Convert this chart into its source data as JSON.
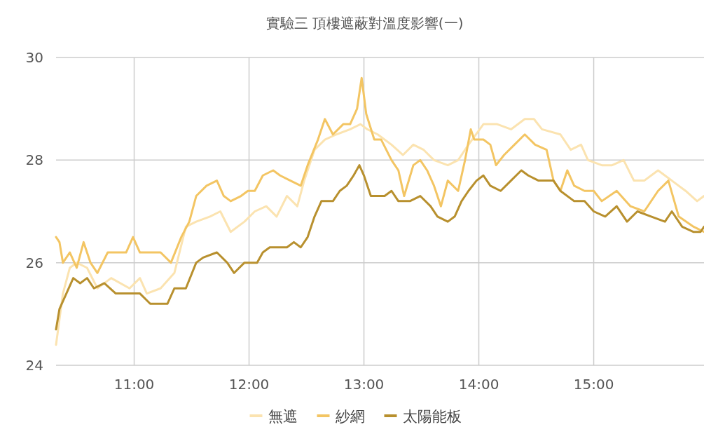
{
  "chart_data": {
    "type": "line",
    "title": "實驗三 頂樓遮蔽對溫度影響(一)",
    "xlim": [
      10.32,
      15.96
    ],
    "xticks": [
      {
        "value": 11,
        "label": "11:00"
      },
      {
        "value": 12,
        "label": "12:00"
      },
      {
        "value": 13,
        "label": "13:00"
      },
      {
        "value": 14,
        "label": "14:00"
      },
      {
        "value": 15,
        "label": "15:00"
      }
    ],
    "ylim": [
      24,
      30
    ],
    "yticks": [
      24,
      26,
      28,
      30
    ],
    "grid": true,
    "legend": "bottom",
    "series": [
      {
        "name": "無遮",
        "color": "#fbe3b0",
        "x": [
          10.32,
          10.38,
          10.44,
          10.5,
          10.59,
          10.68,
          10.8,
          10.96,
          11.05,
          11.11,
          11.23,
          11.35,
          11.45,
          11.54,
          11.66,
          11.75,
          11.84,
          11.96,
          12.05,
          12.15,
          12.24,
          12.33,
          12.42,
          12.48,
          12.57,
          12.66,
          12.76,
          12.88,
          12.97,
          13.03,
          13.12,
          13.24,
          13.34,
          13.43,
          13.52,
          13.61,
          13.73,
          13.82,
          13.91,
          14.04,
          14.16,
          14.28,
          14.4,
          14.48,
          14.55,
          14.71,
          14.8,
          14.89,
          14.95,
          15.07,
          15.16,
          15.26,
          15.35,
          15.44,
          15.56,
          15.68,
          15.8,
          15.9,
          15.96
        ],
        "values": [
          24.4,
          25.4,
          25.9,
          26.0,
          25.9,
          25.5,
          25.7,
          25.5,
          25.7,
          25.4,
          25.5,
          25.8,
          26.7,
          26.8,
          26.9,
          27.0,
          26.6,
          26.8,
          27.0,
          27.1,
          26.9,
          27.3,
          27.1,
          27.6,
          28.2,
          28.4,
          28.5,
          28.6,
          28.7,
          28.6,
          28.5,
          28.3,
          28.1,
          28.3,
          28.2,
          28.0,
          27.9,
          28.0,
          28.3,
          28.7,
          28.7,
          28.6,
          28.8,
          28.8,
          28.6,
          28.5,
          28.2,
          28.3,
          28.0,
          27.9,
          27.9,
          28.0,
          27.6,
          27.6,
          27.8,
          27.6,
          27.4,
          27.2,
          27.3
        ]
      },
      {
        "name": "紗網",
        "color": "#f3c563",
        "x": [
          10.32,
          10.35,
          10.38,
          10.44,
          10.5,
          10.56,
          10.62,
          10.68,
          10.77,
          10.93,
          10.99,
          11.05,
          11.14,
          11.23,
          11.32,
          11.41,
          11.48,
          11.54,
          11.63,
          11.72,
          11.78,
          11.84,
          11.93,
          11.99,
          12.05,
          12.12,
          12.21,
          12.27,
          12.36,
          12.45,
          12.51,
          12.6,
          12.66,
          12.73,
          12.82,
          12.88,
          12.94,
          12.98,
          13.02,
          13.09,
          13.15,
          13.24,
          13.3,
          13.35,
          13.43,
          13.49,
          13.55,
          13.61,
          13.67,
          13.73,
          13.82,
          13.88,
          13.93,
          13.96,
          14.04,
          14.1,
          14.15,
          14.22,
          14.31,
          14.4,
          14.49,
          14.59,
          14.65,
          14.71,
          14.77,
          14.83,
          14.92,
          15.0,
          15.07,
          15.2,
          15.32,
          15.44,
          15.56,
          15.65,
          15.74,
          15.87,
          15.96
        ],
        "values": [
          26.5,
          26.4,
          26.0,
          26.2,
          25.9,
          26.4,
          26.0,
          25.8,
          26.2,
          26.2,
          26.5,
          26.2,
          26.2,
          26.2,
          26.0,
          26.5,
          26.8,
          27.3,
          27.5,
          27.6,
          27.3,
          27.2,
          27.3,
          27.4,
          27.4,
          27.7,
          27.8,
          27.7,
          27.6,
          27.5,
          27.9,
          28.4,
          28.8,
          28.5,
          28.7,
          28.7,
          29.0,
          29.6,
          28.9,
          28.4,
          28.4,
          28.0,
          27.8,
          27.3,
          27.9,
          28.0,
          27.8,
          27.5,
          27.1,
          27.6,
          27.4,
          28.0,
          28.6,
          28.4,
          28.4,
          28.3,
          27.9,
          28.1,
          28.3,
          28.5,
          28.3,
          28.2,
          27.6,
          27.4,
          27.8,
          27.5,
          27.4,
          27.4,
          27.2,
          27.4,
          27.1,
          27.0,
          27.4,
          27.6,
          26.9,
          26.7,
          26.6
        ]
      },
      {
        "name": "太陽能板",
        "color": "#b8902e",
        "x": [
          10.32,
          10.35,
          10.41,
          10.47,
          10.53,
          10.59,
          10.65,
          10.74,
          10.84,
          10.99,
          11.05,
          11.14,
          11.29,
          11.35,
          11.45,
          11.54,
          11.6,
          11.72,
          11.81,
          11.87,
          11.96,
          12.07,
          12.12,
          12.18,
          12.33,
          12.39,
          12.45,
          12.51,
          12.57,
          12.63,
          12.73,
          12.79,
          12.85,
          12.91,
          12.96,
          13.0,
          13.06,
          13.18,
          13.24,
          13.3,
          13.4,
          13.49,
          13.58,
          13.64,
          13.73,
          13.79,
          13.85,
          13.91,
          13.98,
          14.04,
          14.1,
          14.19,
          14.28,
          14.37,
          14.43,
          14.52,
          14.65,
          14.71,
          14.83,
          14.92,
          15.0,
          15.1,
          15.2,
          15.29,
          15.38,
          15.5,
          15.62,
          15.68,
          15.77,
          15.87,
          15.93,
          15.96
        ],
        "values": [
          24.7,
          25.1,
          25.4,
          25.7,
          25.6,
          25.7,
          25.5,
          25.6,
          25.4,
          25.4,
          25.4,
          25.2,
          25.2,
          25.5,
          25.5,
          26.0,
          26.1,
          26.2,
          26.0,
          25.8,
          26.0,
          26.0,
          26.2,
          26.3,
          26.3,
          26.4,
          26.3,
          26.5,
          26.9,
          27.2,
          27.2,
          27.4,
          27.5,
          27.7,
          27.9,
          27.7,
          27.3,
          27.3,
          27.4,
          27.2,
          27.2,
          27.3,
          27.1,
          26.9,
          26.8,
          26.9,
          27.2,
          27.4,
          27.6,
          27.7,
          27.5,
          27.4,
          27.6,
          27.8,
          27.7,
          27.6,
          27.6,
          27.4,
          27.2,
          27.2,
          27.0,
          26.9,
          27.1,
          26.8,
          27.0,
          26.9,
          26.8,
          27.0,
          26.7,
          26.6,
          26.6,
          26.7
        ]
      }
    ]
  }
}
